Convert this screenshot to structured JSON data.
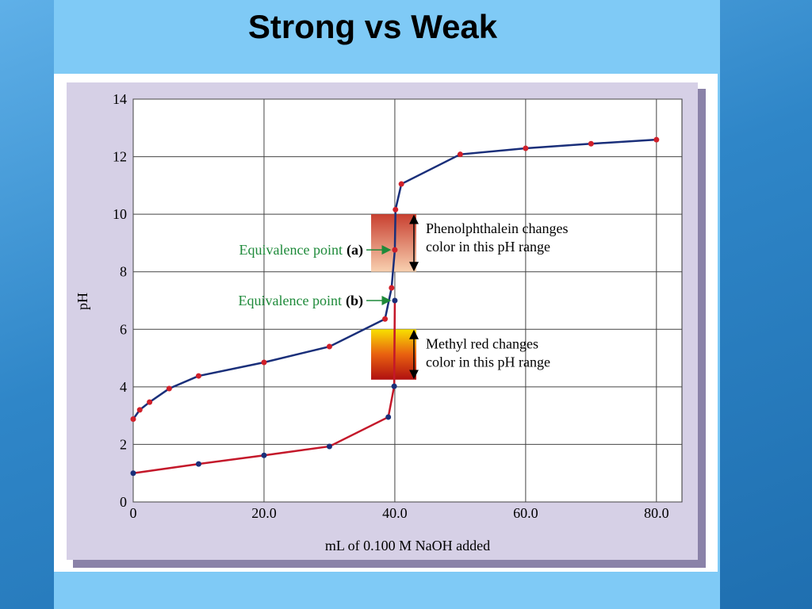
{
  "chart_data": {
    "type": "line",
    "title": "Strong vs Weak",
    "xlabel": "mL of 0.100 M NaOH added",
    "ylabel": "pH",
    "xlim": [
      0,
      83.9
    ],
    "ylim": [
      0,
      14
    ],
    "xticks": [
      0,
      {
        "value": 20,
        "label": "20.0"
      },
      {
        "value": 40,
        "label": "40.0"
      },
      {
        "value": 60,
        "label": "60.0"
      },
      {
        "value": 80,
        "label": "80.0"
      }
    ],
    "yticks": [
      0,
      2,
      4,
      6,
      8,
      10,
      12,
      14
    ],
    "grid": true,
    "series": [
      {
        "color": "#1a2f7a",
        "marker_color": "#d0202a",
        "x": [
          0,
          1,
          2.5,
          5.5,
          10,
          20,
          30,
          38.5,
          39.5,
          40,
          40.1,
          41,
          50,
          60,
          70,
          80
        ],
        "values": [
          2.88,
          3.2,
          3.47,
          3.94,
          4.38,
          4.85,
          5.4,
          6.36,
          7.44,
          8.76,
          10.16,
          11.05,
          12.08,
          12.29,
          12.45,
          12.59
        ]
      },
      {
        "color": "#c4182a",
        "marker_color": "#1a2f7a",
        "x": [
          0,
          10,
          20,
          30,
          39,
          39.9,
          40
        ],
        "values": [
          1.0,
          1.32,
          1.62,
          1.93,
          2.95,
          4.02,
          7.0
        ]
      }
    ],
    "annotations": [
      {
        "text": "Equivalence point",
        "label": "(a)"
      },
      {
        "text": "Equivalence point",
        "label": "(b)"
      }
    ],
    "indicators": [
      {
        "lines": [
          "Phenolphthalein changes",
          "color in this pH range"
        ],
        "range": [
          8,
          10
        ]
      },
      {
        "lines": [
          "Methyl red changes",
          "color in this pH range"
        ],
        "range": [
          4.25,
          6
        ]
      }
    ]
  }
}
